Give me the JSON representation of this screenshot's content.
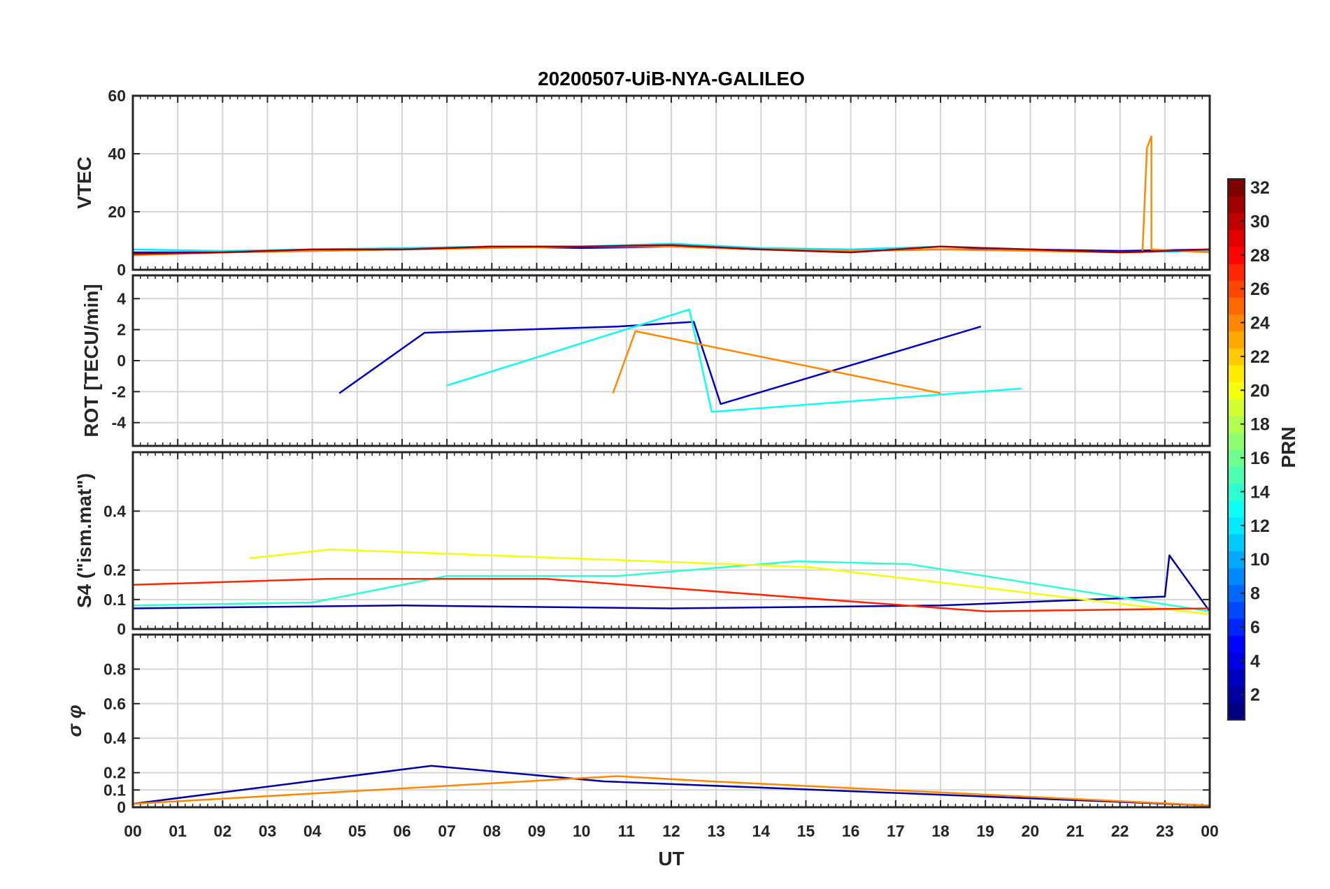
{
  "figure": {
    "title": "20200507-UiB-NYA-GALILEO",
    "xlabel": "UT"
  },
  "colorbar": {
    "label": "PRN",
    "ticks": [
      "2",
      "4",
      "6",
      "8",
      "10",
      "12",
      "14",
      "16",
      "18",
      "20",
      "22",
      "24",
      "26",
      "28",
      "30",
      "32"
    ],
    "range": [
      1,
      32
    ],
    "colormap": "jet"
  },
  "chart_data": [
    {
      "type": "line",
      "panel": "VTEC",
      "ylabel": "VTEC",
      "xlim": [
        0,
        24
      ],
      "ylim": [
        0,
        60
      ],
      "yticks": [
        "0",
        "20",
        "40",
        "60"
      ],
      "xticks": [
        "00",
        "01",
        "02",
        "03",
        "04",
        "05",
        "06",
        "07",
        "08",
        "09",
        "10",
        "11",
        "12",
        "13",
        "14",
        "15",
        "16",
        "17",
        "18",
        "19",
        "20",
        "21",
        "22",
        "23",
        "00"
      ],
      "grid": true,
      "series": [
        {
          "prn": 3,
          "x": [
            0,
            2,
            4,
            6,
            8,
            10,
            12,
            14,
            16,
            18,
            20,
            22,
            24
          ],
          "y": [
            6,
            6,
            6.5,
            7,
            8,
            7.5,
            8,
            7,
            6.5,
            7,
            7,
            6.5,
            7
          ]
        },
        {
          "prn": 12,
          "x": [
            0,
            2,
            4,
            6,
            8,
            10,
            12,
            14,
            16,
            18,
            20,
            22,
            24
          ],
          "y": [
            7,
            6.5,
            7,
            7.5,
            8,
            8,
            9,
            7.5,
            7,
            8,
            7,
            6,
            6.5
          ]
        },
        {
          "prn": 24,
          "x": [
            0,
            2,
            4,
            6,
            8,
            10,
            12,
            14,
            16,
            18,
            20,
            22,
            22.5,
            22.6,
            22.7,
            22.7,
            24
          ],
          "y": [
            5,
            6,
            6.5,
            7,
            7.5,
            8,
            8,
            7,
            6.5,
            7,
            6.5,
            6,
            6,
            42,
            46,
            7,
            6
          ]
        },
        {
          "prn": 31,
          "x": [
            0,
            2,
            4,
            6,
            8,
            10,
            12,
            14,
            16,
            18,
            20,
            22,
            24
          ],
          "y": [
            5.5,
            6,
            7,
            7,
            8,
            8,
            8.5,
            7,
            6,
            8,
            7,
            6,
            7
          ]
        }
      ]
    },
    {
      "type": "line",
      "panel": "ROT",
      "ylabel": "ROT [TECU/min]",
      "xlim": [
        0,
        24
      ],
      "ylim": [
        -5.5,
        5.5
      ],
      "yticks": [
        "-4",
        "-2",
        "0",
        "2",
        "4"
      ],
      "grid": true,
      "series": [
        {
          "prn": 3,
          "x": [
            4.6,
            6.5,
            10.8,
            12.5,
            13.1,
            18.9
          ],
          "y": [
            -2.1,
            1.8,
            2.2,
            2.5,
            -2.8,
            2.2
          ]
        },
        {
          "prn": 13,
          "x": [
            7,
            12.4,
            12.9,
            19.8
          ],
          "y": [
            -1.6,
            3.3,
            -3.3,
            -1.8
          ]
        },
        {
          "prn": 24,
          "x": [
            10.7,
            11.2,
            18
          ],
          "y": [
            -2.1,
            1.9,
            -2.1
          ]
        }
      ]
    },
    {
      "type": "line",
      "panel": "S4",
      "ylabel": "S4 (\"ism.mat\")",
      "xlim": [
        0,
        24
      ],
      "ylim": [
        0,
        0.6
      ],
      "yticks": [
        "0",
        "0.1",
        "0.2",
        "0.4"
      ],
      "grid": true,
      "series": [
        {
          "prn": 2,
          "x": [
            0,
            6,
            12,
            18,
            23,
            23.1,
            24
          ],
          "y": [
            0.07,
            0.08,
            0.07,
            0.08,
            0.11,
            0.25,
            0.06
          ]
        },
        {
          "prn": 14,
          "x": [
            0,
            4,
            7,
            10.8,
            14.8,
            17.3,
            24
          ],
          "y": [
            0.08,
            0.09,
            0.18,
            0.18,
            0.23,
            0.22,
            0.06
          ]
        },
        {
          "prn": 20,
          "x": [
            2.6,
            4.4,
            15.1,
            24
          ],
          "y": [
            0.24,
            0.27,
            0.21,
            0.05
          ]
        },
        {
          "prn": 27,
          "x": [
            0,
            4.3,
            9.2,
            19,
            24
          ],
          "y": [
            0.15,
            0.17,
            0.17,
            0.06,
            0.07
          ]
        }
      ]
    },
    {
      "type": "line",
      "panel": "sigma_phi",
      "ylabel": "σ φ",
      "xlim": [
        0,
        24
      ],
      "ylim": [
        0,
        1
      ],
      "yticks": [
        "0",
        "0.1",
        "0.2",
        "0.4",
        "0.6",
        "0.8"
      ],
      "grid": true,
      "series": [
        {
          "prn": 2,
          "x": [
            0,
            6.65,
            10.5,
            24
          ],
          "y": [
            0.02,
            0.24,
            0.15,
            0.01
          ]
        },
        {
          "prn": 24,
          "x": [
            0,
            10.8,
            12.9,
            24
          ],
          "y": [
            0.02,
            0.18,
            0.15,
            0.01
          ]
        }
      ]
    }
  ]
}
